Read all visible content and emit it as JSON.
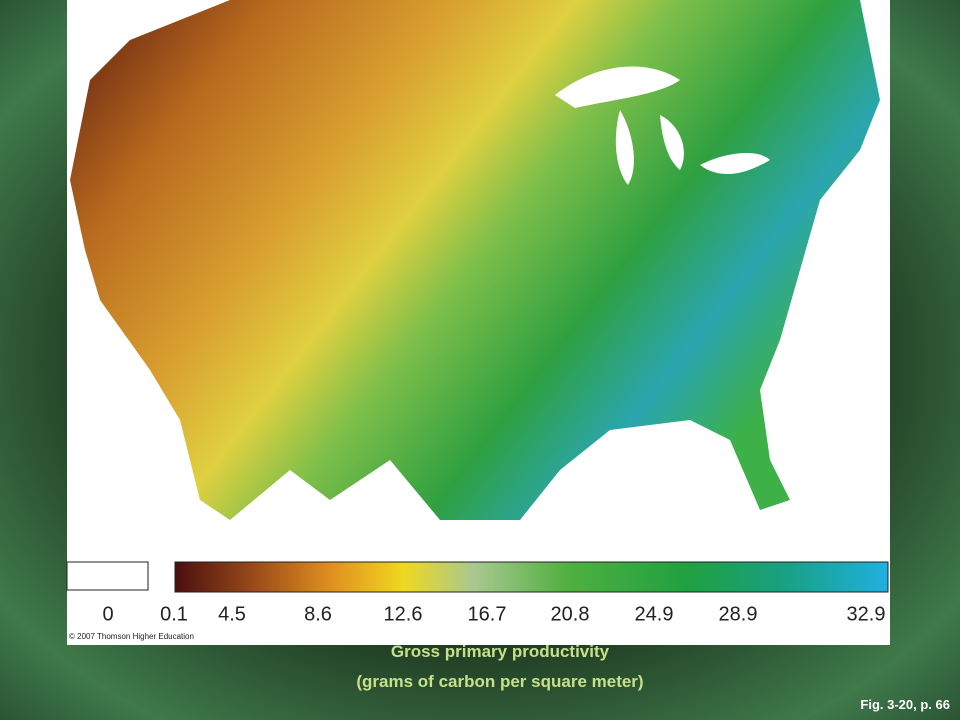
{
  "legend": {
    "no_data_label": 0,
    "labels": [
      0.1,
      4.5,
      8.6,
      12.6,
      16.7,
      20.8,
      24.9,
      28.9,
      32.9
    ]
  },
  "copyright": "© 2007 Thomson Higher Education",
  "caption": {
    "line1": "Gross primary productivity",
    "line2": "(grams of carbon per square meter)"
  },
  "figure_ref": "Fig. 3-20, p. 66"
}
